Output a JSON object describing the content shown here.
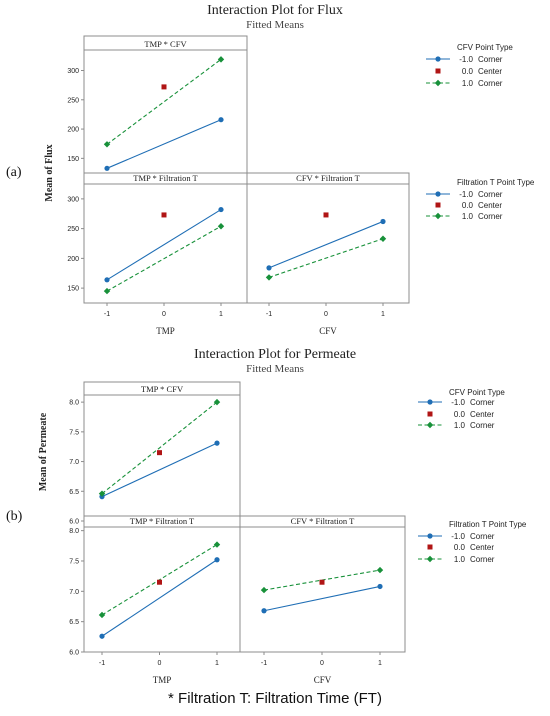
{
  "colors": {
    "low": "#1f6eb5",
    "center": "#b01515",
    "high": "#18913a",
    "frame": "#8c8c8c",
    "text": "#222222"
  },
  "footnote": "* Filtration T: Filtration Time (FT)",
  "chart_data": [
    {
      "type": "line",
      "label": "(a)",
      "title": "Interaction Plot for Flux",
      "subtitle": "Fitted Means",
      "ylabel": "Mean of Flux",
      "panels": [
        {
          "title": "TMP * CFV",
          "xticks": [
            "-1",
            "1"
          ],
          "yticks": [
            150,
            200,
            250,
            300
          ],
          "ylim": [
            125,
            335
          ],
          "series": [
            {
              "level": "-1.0",
              "x": [
                -1,
                1
              ],
              "y": [
                133,
                216
              ]
            },
            {
              "level": "1.0",
              "x": [
                -1,
                1
              ],
              "y": [
                174,
                319
              ]
            }
          ],
          "center": {
            "x": 0,
            "y": 272
          }
        },
        {
          "title": "TMP * Filtration T",
          "xticks": [
            "-1",
            "0",
            "1"
          ],
          "yticks": [
            150,
            200,
            250,
            300
          ],
          "ylim": [
            125,
            325
          ],
          "xlabel": "TMP",
          "series": [
            {
              "level": "-1.0",
              "x": [
                -1,
                1
              ],
              "y": [
                164,
                282
              ]
            },
            {
              "level": "1.0",
              "x": [
                -1,
                1
              ],
              "y": [
                145,
                254
              ]
            }
          ],
          "center": {
            "x": 0,
            "y": 273
          }
        },
        {
          "title": "CFV * Filtration T",
          "xticks": [
            "-1",
            "0",
            "1"
          ],
          "yticks": [],
          "ylim": [
            125,
            325
          ],
          "xlabel": "CFV",
          "series": [
            {
              "level": "-1.0",
              "x": [
                -1,
                1
              ],
              "y": [
                184,
                262
              ]
            },
            {
              "level": "1.0",
              "x": [
                -1,
                1
              ],
              "y": [
                168,
                233
              ]
            }
          ],
          "center": {
            "x": 0,
            "y": 273
          }
        }
      ],
      "legends": [
        {
          "title": "CFV  Point Type",
          "entries": [
            {
              "level": "-1.0",
              "type": "Corner"
            },
            {
              "level": "0.0",
              "type": "Center"
            },
            {
              "level": "1.0",
              "type": "Corner"
            }
          ]
        },
        {
          "title": "Filtration T  Point Type",
          "entries": [
            {
              "level": "-1.0",
              "type": "Corner"
            },
            {
              "level": "0.0",
              "type": "Center"
            },
            {
              "level": "1.0",
              "type": "Corner"
            }
          ]
        }
      ]
    },
    {
      "type": "line",
      "label": "(b)",
      "title": "Interaction Plot for Permeate",
      "subtitle": "Fitted Means",
      "ylabel": "Mean of Permeate",
      "panels": [
        {
          "title": "TMP * CFV",
          "xticks": [
            "-1",
            "1"
          ],
          "yticks": [
            "6.0",
            "6.5",
            "7.0",
            "7.5",
            "8.0"
          ],
          "ylim": [
            6.0,
            8.12
          ],
          "series": [
            {
              "level": "-1.0",
              "x": [
                -1,
                1
              ],
              "y": [
                6.41,
                7.31
              ]
            },
            {
              "level": "1.0",
              "x": [
                -1,
                1
              ],
              "y": [
                6.46,
                8.0
              ]
            }
          ],
          "center": {
            "x": 0,
            "y": 7.15
          }
        },
        {
          "title": "TMP * Filtration T",
          "xticks": [
            "-1",
            "0",
            "1"
          ],
          "yticks": [
            "6.0",
            "6.5",
            "7.0",
            "7.5",
            "8.0"
          ],
          "ylim": [
            6.0,
            8.06
          ],
          "xlabel": "TMP",
          "series": [
            {
              "level": "-1.0",
              "x": [
                -1,
                1
              ],
              "y": [
                6.26,
                7.52
              ]
            },
            {
              "level": "1.0",
              "x": [
                -1,
                1
              ],
              "y": [
                6.61,
                7.77
              ]
            }
          ],
          "center": {
            "x": 0,
            "y": 7.15
          }
        },
        {
          "title": "CFV * Filtration T",
          "xticks": [
            "-1",
            "0",
            "1"
          ],
          "yticks": [],
          "ylim": [
            6.0,
            8.06
          ],
          "xlabel": "CFV",
          "series": [
            {
              "level": "-1.0",
              "x": [
                -1,
                1
              ],
              "y": [
                6.68,
                7.08
              ]
            },
            {
              "level": "1.0",
              "x": [
                -1,
                1
              ],
              "y": [
                7.02,
                7.35
              ]
            }
          ],
          "center": {
            "x": 0,
            "y": 7.15
          }
        }
      ],
      "legends": [
        {
          "title": "CFV  Point Type",
          "entries": [
            {
              "level": "-1.0",
              "type": "Corner"
            },
            {
              "level": "0.0",
              "type": "Center"
            },
            {
              "level": "1.0",
              "type": "Corner"
            }
          ]
        },
        {
          "title": "Filtration T  Point Type",
          "entries": [
            {
              "level": "-1.0",
              "type": "Corner"
            },
            {
              "level": "0.0",
              "type": "Center"
            },
            {
              "level": "1.0",
              "type": "Corner"
            }
          ]
        }
      ]
    }
  ]
}
